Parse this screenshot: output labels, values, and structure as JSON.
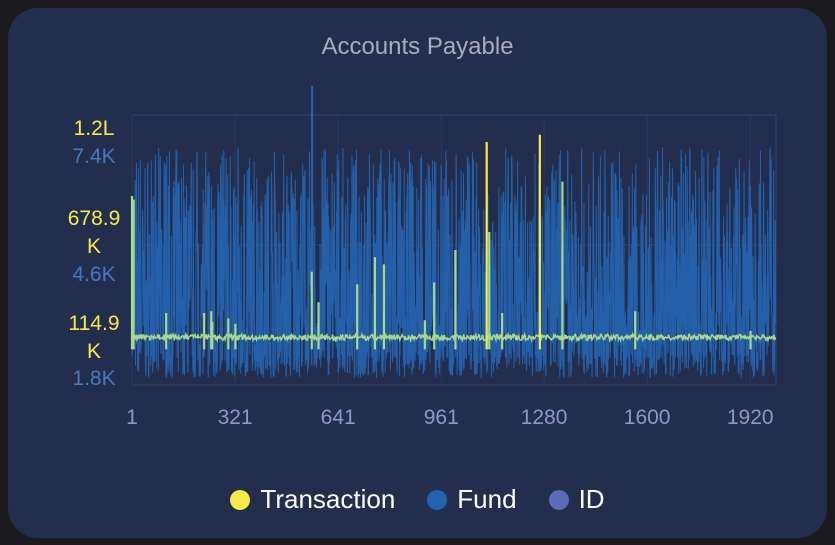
{
  "chart_data": {
    "type": "line",
    "title": "Accounts Payable",
    "x_ticks": [
      "1",
      "321",
      "641",
      "961",
      "1280",
      "1600",
      "1920"
    ],
    "x_range": [
      1,
      2000
    ],
    "axes": {
      "left_primary": {
        "series": "Transaction",
        "tick_labels": [
          "1.2L",
          "678.9K",
          "114.9K"
        ],
        "tick_values": [
          1200000,
          678900,
          114900
        ],
        "range": [
          -150000,
          1350000
        ]
      },
      "left_secondary": {
        "series": "Fund",
        "tick_labels": [
          "7.4K",
          "4.6K",
          "1.8K"
        ],
        "tick_values": [
          7400,
          4600,
          1800
        ],
        "range": [
          1800,
          7400
        ]
      }
    },
    "series": [
      {
        "name": "Transaction",
        "color": "#f6e94a",
        "baseline": 114900,
        "spikes": [
          [
            1,
            900000
          ],
          [
            6,
            880000
          ],
          [
            107,
            250000
          ],
          [
            225,
            250000
          ],
          [
            247,
            260000
          ],
          [
            250,
            200000
          ],
          [
            300,
            220000
          ],
          [
            322,
            190000
          ],
          [
            559,
            480000
          ],
          [
            580,
            310000
          ],
          [
            700,
            410000
          ],
          [
            755,
            560000
          ],
          [
            783,
            520000
          ],
          [
            910,
            210000
          ],
          [
            939,
            420000
          ],
          [
            1005,
            600000
          ],
          [
            1102,
            1200000
          ],
          [
            1110,
            700000
          ],
          [
            1150,
            250000
          ],
          [
            1267,
            1240000
          ],
          [
            1337,
            980000
          ],
          [
            1563,
            260000
          ],
          [
            1921,
            150000
          ]
        ]
      },
      {
        "name": "Fund",
        "color": "#2563ae",
        "range_min": 1800,
        "range_max": 7400,
        "point_count": 2000
      },
      {
        "name": "ID",
        "color": "#5b6bb5"
      }
    ],
    "legend_position": "bottom",
    "grid": true
  }
}
